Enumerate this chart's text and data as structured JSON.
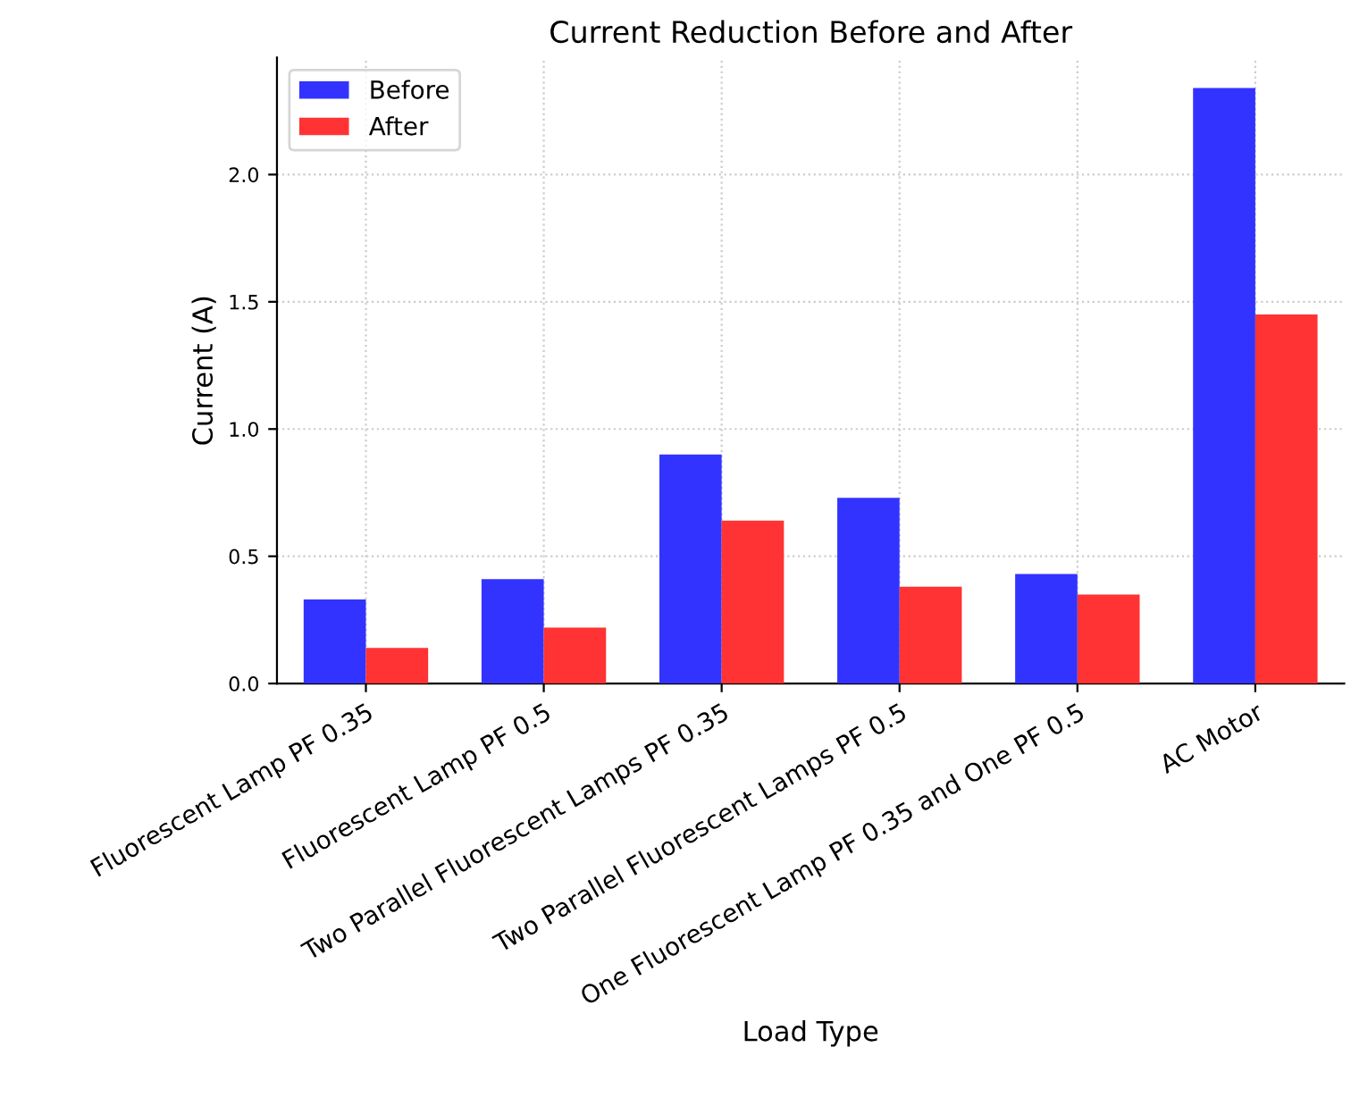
{
  "chart_data": {
    "type": "bar",
    "title": "Current Reduction Before and After",
    "xlabel": "Load Type",
    "ylabel": "Current (A)",
    "categories": [
      "Fluorescent Lamp PF 0.35",
      "Fluorescent Lamp PF 0.5",
      "Two Parallel Fluorescent Lamps PF 0.35",
      "Two Parallel Fluorescent Lamps PF 0.5",
      "One Fluorescent Lamp PF 0.35 and One PF 0.5",
      "AC Motor"
    ],
    "series": [
      {
        "name": "Before",
        "color": "#3333ff",
        "values": [
          0.33,
          0.41,
          0.9,
          0.73,
          0.43,
          2.34
        ]
      },
      {
        "name": "After",
        "color": "#ff3333",
        "values": [
          0.14,
          0.22,
          0.64,
          0.38,
          0.35,
          1.45
        ]
      }
    ],
    "ylim": [
      0,
      2.46
    ],
    "yticks": [
      {
        "value": 0,
        "label": "0.0"
      },
      {
        "value": 0.5,
        "label": "0.5"
      },
      {
        "value": 1,
        "label": "1.0"
      },
      {
        "value": 1.5,
        "label": "1.5"
      },
      {
        "value": 2,
        "label": "2.0"
      }
    ],
    "grid": true,
    "legend": "top left"
  }
}
